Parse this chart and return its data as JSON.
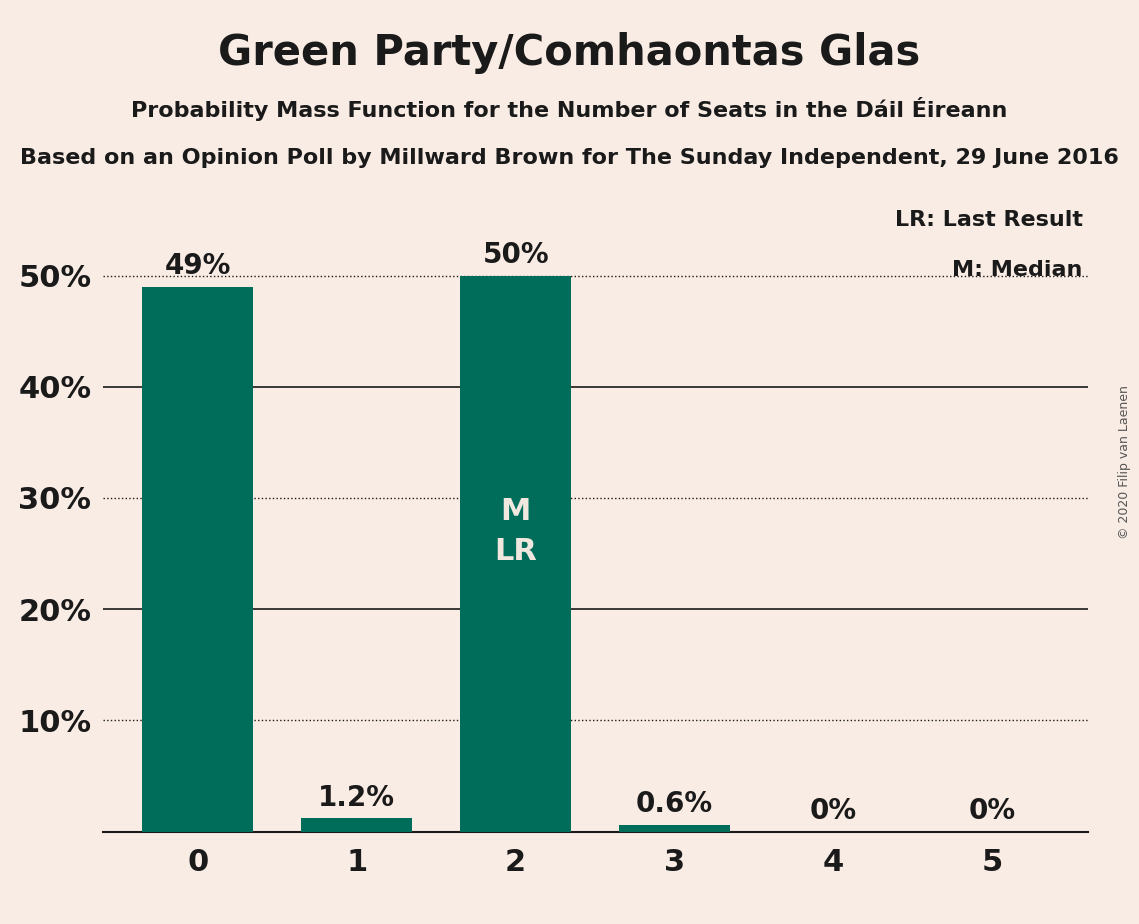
{
  "title": "Green Party/Comhaontas Glas",
  "subtitle1": "Probability Mass Function for the Number of Seats in the Dáil Éireann",
  "subtitle2": "Based on an Opinion Poll by Millward Brown for The Sunday Independent, 29 June 2016",
  "copyright": "© 2020 Filip van Laenen",
  "categories": [
    0,
    1,
    2,
    3,
    4,
    5
  ],
  "values": [
    0.49,
    0.012,
    0.5,
    0.006,
    0.0,
    0.0
  ],
  "bar_color": "#006d5b",
  "background_color": "#f9ece4",
  "text_color": "#1a1a1a",
  "bar_text_color_inside": "#f0e8df",
  "median": 2,
  "last_result": 2,
  "ylim": [
    0,
    0.565
  ],
  "yticks": [
    0.1,
    0.2,
    0.3,
    0.4,
    0.5
  ],
  "ytick_labels": [
    "10%",
    "20%",
    "30%",
    "40%",
    "50%"
  ],
  "solid_gridlines": [
    0.2,
    0.4
  ],
  "dotted_gridlines": [
    0.1,
    0.3,
    0.5
  ],
  "legend_lr": "LR: Last Result",
  "legend_m": "M: Median",
  "value_labels": [
    "49%",
    "1.2%",
    "50%",
    "0.6%",
    "0%",
    "0%"
  ],
  "label_inside_threshold": 0.08
}
